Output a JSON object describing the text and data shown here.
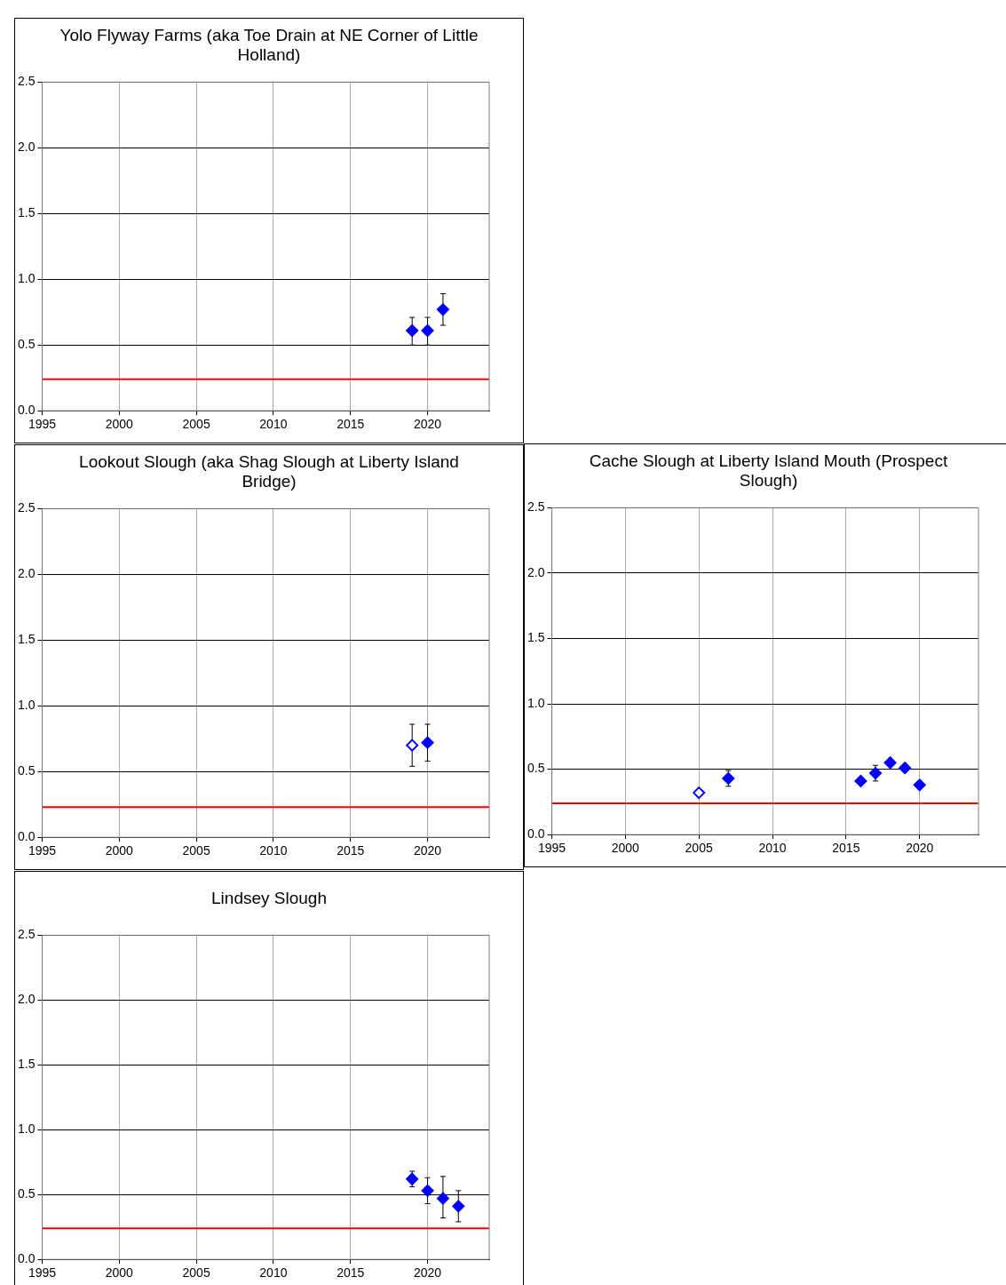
{
  "chart_data": [
    {
      "type": "scatter",
      "title": "Yolo Flyway Farms (aka Toe Drain at NE Corner of Little Holland)",
      "marker": "diamond",
      "grid": true,
      "legend": false,
      "xlim": [
        1995,
        2024
      ],
      "xticks": [
        1995,
        2000,
        2005,
        2010,
        2015,
        2020
      ],
      "ylim": [
        0,
        2.5
      ],
      "yticks": [
        {
          "value": 0,
          "label": "0.0"
        },
        0.5,
        {
          "value": 1,
          "label": "1.0"
        },
        1.5,
        {
          "value": 2,
          "label": "2.0"
        },
        2.5
      ],
      "series": [
        {
          "color": "#0000ff",
          "x": [
            2019,
            2020,
            2021
          ],
          "values": [
            0.61,
            0.61,
            0.77
          ],
          "errors": [
            [
              0.5,
              0.71
            ],
            [
              0.5,
              0.71
            ],
            [
              0.65,
              0.89
            ]
          ]
        }
      ],
      "ref_lines": [
        {
          "axis": "y",
          "value": 0.24,
          "color": "#ff0000"
        }
      ]
    },
    {
      "type": "scatter",
      "title": "Lookout Slough (aka Shag Slough at Liberty Island Bridge)",
      "marker": "diamond",
      "grid": true,
      "legend": false,
      "xlim": [
        1995,
        2024
      ],
      "xticks": [
        1995,
        2000,
        2005,
        2010,
        2015,
        2020
      ],
      "ylim": [
        0,
        2.5
      ],
      "yticks": [
        {
          "value": 0,
          "label": "0.0"
        },
        0.5,
        {
          "value": 1,
          "label": "1.0"
        },
        1.5,
        {
          "value": 2,
          "label": "2.0"
        },
        2.5
      ],
      "series": [
        {
          "color": "#0000ff",
          "colors": [
            "#ffffff",
            "#0000ff"
          ],
          "x": [
            2019,
            2020
          ],
          "values": [
            0.7,
            0.72
          ],
          "errors": [
            [
              0.54,
              0.86
            ],
            [
              0.58,
              0.86
            ]
          ]
        }
      ],
      "ref_lines": [
        {
          "axis": "y",
          "value": 0.23,
          "color": "#ff0000"
        }
      ]
    },
    {
      "type": "scatter",
      "title": "Cache Slough at Liberty Island Mouth (Prospect Slough)",
      "marker": "diamond",
      "grid": true,
      "legend": false,
      "xlim": [
        1995,
        2024
      ],
      "xticks": [
        1995,
        2000,
        2005,
        2010,
        2015,
        2020
      ],
      "ylim": [
        0,
        2.5
      ],
      "yticks": [
        {
          "value": 0,
          "label": "0.0"
        },
        0.5,
        {
          "value": 1,
          "label": "1.0"
        },
        1.5,
        {
          "value": 2,
          "label": "2.0"
        },
        2.5
      ],
      "series": [
        {
          "color": "#0000ff",
          "colors": [
            "#ffffff",
            "#0000ff",
            "#0000ff",
            "#0000ff",
            "#0000ff",
            "#0000ff",
            "#0000ff"
          ],
          "x": [
            2005,
            2007,
            2016,
            2017,
            2018,
            2019,
            2020
          ],
          "values": [
            0.32,
            0.43,
            0.41,
            0.47,
            0.55,
            0.51,
            0.38
          ],
          "errors": [
            null,
            [
              0.37,
              0.49
            ],
            null,
            [
              0.41,
              0.53
            ],
            null,
            null,
            null
          ]
        }
      ],
      "ref_lines": [
        {
          "axis": "y",
          "value": 0.24,
          "color": "#ff0000"
        }
      ]
    },
    {
      "type": "scatter",
      "title": "Lindsey Slough",
      "marker": "diamond",
      "grid": true,
      "legend": false,
      "xlim": [
        1995,
        2024
      ],
      "xticks": [
        1995,
        2000,
        2005,
        2010,
        2015,
        2020
      ],
      "ylim": [
        0,
        2.5
      ],
      "yticks": [
        {
          "value": 0,
          "label": "0.0"
        },
        0.5,
        {
          "value": 1,
          "label": "1.0"
        },
        1.5,
        {
          "value": 2,
          "label": "2.0"
        },
        2.5
      ],
      "series": [
        {
          "color": "#0000ff",
          "x": [
            2019,
            2020,
            2021,
            2022
          ],
          "values": [
            0.62,
            0.53,
            0.47,
            0.41
          ],
          "errors": [
            [
              0.56,
              0.68
            ],
            [
              0.43,
              0.63
            ],
            [
              0.32,
              0.64
            ],
            [
              0.29,
              0.53
            ]
          ]
        }
      ],
      "ref_lines": [
        {
          "axis": "y",
          "value": 0.24,
          "color": "#ff0000"
        }
      ]
    }
  ]
}
